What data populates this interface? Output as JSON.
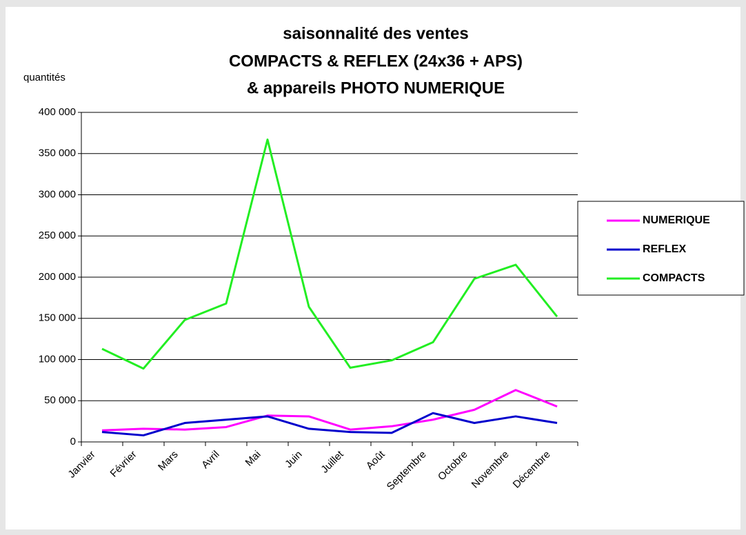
{
  "chart_data": {
    "type": "line",
    "title": [
      "saisonnalité des ventes",
      "COMPACTS & REFLEX (24x36 + APS)",
      "& appareils PHOTO NUMERIQUE"
    ],
    "y_label": "quantités",
    "categories": [
      "Janvier",
      "Février",
      "Mars",
      "Avril",
      "Mai",
      "Juin",
      "Juillet",
      "Août",
      "Septembre",
      "Octobre",
      "Novembre",
      "Décembre"
    ],
    "series": [
      {
        "name": "NUMERIQUE",
        "color": "#ff00ff",
        "values": [
          14000,
          16000,
          15000,
          18000,
          32000,
          31000,
          15000,
          19000,
          27000,
          39000,
          63000,
          43000
        ]
      },
      {
        "name": "REFLEX",
        "color": "#0000cc",
        "values": [
          12000,
          8000,
          23000,
          27000,
          31000,
          16000,
          12000,
          11000,
          35000,
          23000,
          31000,
          23000
        ]
      },
      {
        "name": "COMPACTS",
        "color": "#22ee22",
        "values": [
          113000,
          89000,
          148000,
          168000,
          367000,
          164000,
          90000,
          99000,
          121000,
          198000,
          215000,
          152000
        ]
      }
    ],
    "ylim": [
      0,
      400000
    ],
    "yticks": [
      0,
      {
        "value": 50000,
        "label": "50 000"
      },
      {
        "value": 100000,
        "label": "100 000"
      },
      {
        "value": 150000,
        "label": "150 000"
      },
      {
        "value": 200000,
        "label": "200 000"
      },
      {
        "value": 250000,
        "label": "250 000"
      },
      {
        "value": 300000,
        "label": "300 000"
      },
      {
        "value": 350000,
        "label": "350 000"
      },
      {
        "value": 400000,
        "label": "400 000"
      }
    ],
    "grid": true,
    "legend": "right"
  }
}
